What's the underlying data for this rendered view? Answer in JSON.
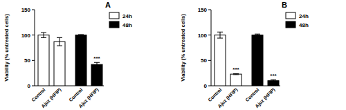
{
  "chart_data": [
    {
      "type": "bar",
      "title": "A",
      "y_label": "Viability (% untreated cells)",
      "categories": [
        "Control",
        "Ajuz (HFIP)",
        "Control",
        "Ajuz (HFIP)"
      ],
      "series": [
        {
          "name": "24h",
          "color": "#ffffff",
          "values": [
            100,
            87,
            null,
            null
          ],
          "errors": [
            5,
            8,
            null,
            null
          ]
        },
        {
          "name": "48h",
          "color": "#000000",
          "values": [
            null,
            null,
            100,
            42
          ],
          "errors": [
            null,
            null,
            1,
            4
          ]
        }
      ],
      "annotations": [
        {
          "text": "***",
          "category": 3
        }
      ],
      "ylim": [
        0,
        150
      ],
      "yticks": [
        0,
        50,
        100,
        150
      ],
      "grid": false,
      "legend": "right"
    },
    {
      "type": "bar",
      "title": "B",
      "y_label": "Viability (% untreated cells)",
      "categories": [
        "Control",
        "Ajuz (HFIP)",
        "Control",
        "Ajuz (HFIP)"
      ],
      "series": [
        {
          "name": "24h",
          "color": "#ffffff",
          "values": [
            100,
            23,
            null,
            null
          ],
          "errors": [
            6,
            1,
            null,
            null
          ]
        },
        {
          "name": "48h",
          "color": "#000000",
          "values": [
            null,
            null,
            100,
            10
          ],
          "errors": [
            null,
            null,
            2,
            2
          ]
        }
      ],
      "annotations": [
        {
          "text": "***",
          "category": 1
        },
        {
          "text": "***",
          "category": 3
        }
      ],
      "ylim": [
        0,
        150
      ],
      "yticks": [
        0,
        50,
        100,
        150
      ],
      "grid": false,
      "legend": "right"
    }
  ]
}
